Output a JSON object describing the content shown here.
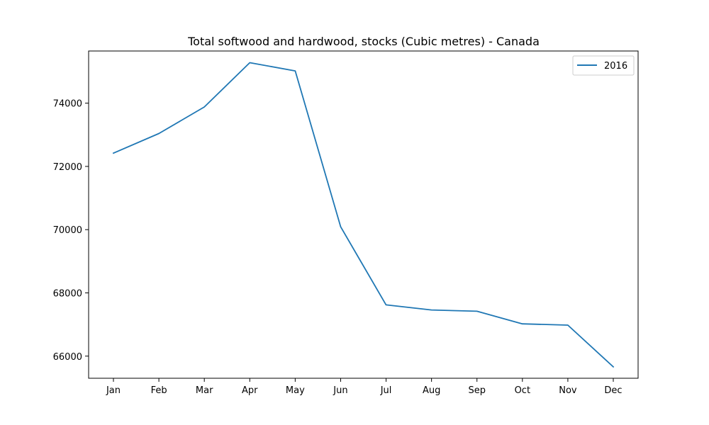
{
  "chart_data": {
    "type": "line",
    "title": "Total softwood and hardwood, stocks (Cubic metres) - Canada",
    "xlabel": "",
    "ylabel": "",
    "categories": [
      "Jan",
      "Feb",
      "Mar",
      "Apr",
      "May",
      "Jun",
      "Jul",
      "Aug",
      "Sep",
      "Oct",
      "Nov",
      "Dec"
    ],
    "series": [
      {
        "name": "2016",
        "color": "#1f77b4",
        "values": [
          72420,
          73040,
          73880,
          75280,
          75020,
          70090,
          67620,
          67460,
          67420,
          67020,
          66980,
          65660
        ]
      }
    ],
    "ylim": [
      65300,
      75650
    ],
    "yticks": [
      66000,
      68000,
      70000,
      72000,
      74000
    ],
    "ytick_labels": [
      "66000",
      "68000",
      "70000",
      "72000",
      "74000"
    ],
    "legend_position": "upper right",
    "grid": false
  }
}
